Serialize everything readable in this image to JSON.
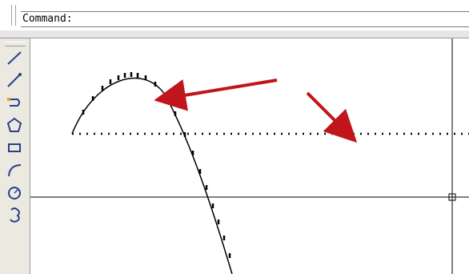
{
  "command_line": {
    "prompt": "Command:"
  },
  "toolbar": {
    "tools": [
      {
        "name": "line-icon"
      },
      {
        "name": "construction-line-icon"
      },
      {
        "name": "polyline-icon"
      },
      {
        "name": "polygon-icon"
      },
      {
        "name": "rectangle-icon"
      },
      {
        "name": "arc-icon"
      },
      {
        "name": "circle-icon"
      },
      {
        "name": "revision-cloud-icon"
      }
    ]
  },
  "drawing": {
    "line_color": "#000000",
    "arrow_color": "#c0161b"
  }
}
